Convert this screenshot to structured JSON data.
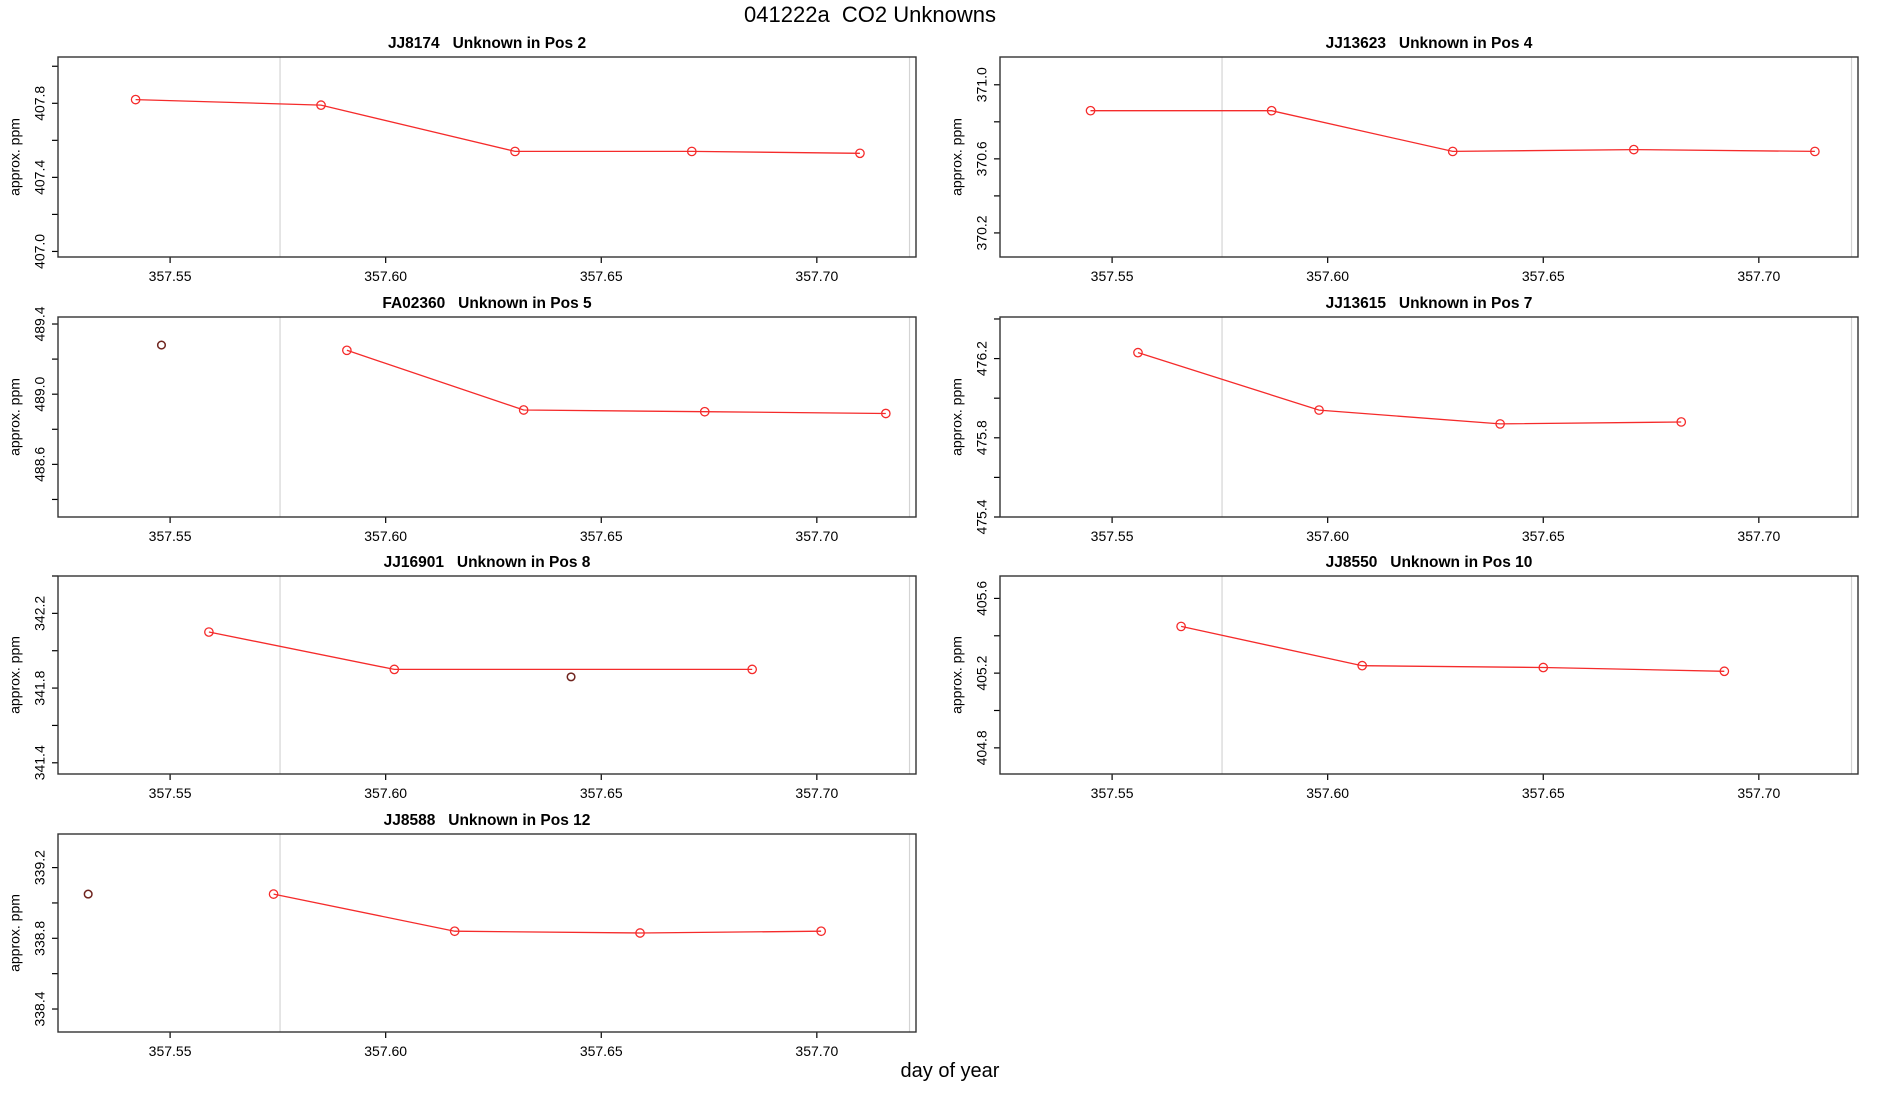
{
  "figure": {
    "title": "041222a  CO2 Unknowns",
    "x_axis_title": "day of year",
    "y_axis_title": "approx. ppm",
    "colors": {
      "series_line": "#f52b2b",
      "series_marker": "#f52b2b",
      "outlier_marker": "#6f241e",
      "guide_line": "#d4d4d4",
      "frame": "#333333",
      "text": "#000000",
      "background": "#ffffff"
    }
  },
  "chart_data": [
    {
      "type": "line",
      "title": "JJ8174   Unknown in Pos 2",
      "sample_id": "JJ8174",
      "position_label": "Unknown in Pos 2",
      "xlabel": "day of year",
      "ylabel": "approx. ppm",
      "x": [
        357.542,
        357.585,
        357.63,
        357.671,
        357.71
      ],
      "y": [
        407.82,
        407.79,
        407.54,
        407.54,
        407.53
      ],
      "outlier_points": [],
      "xlim": [
        357.524,
        357.723
      ],
      "ylim": [
        406.97,
        408.05
      ],
      "x_ticks": [
        357.55,
        357.6,
        357.65,
        357.7
      ],
      "y_ticks": [
        407.0,
        407.2,
        407.4,
        407.6,
        407.8,
        408.0
      ],
      "y_tick_labels": [
        407.0,
        407.4,
        407.8
      ],
      "guide_vlines": [
        357.5755,
        357.7215
      ],
      "grid": false,
      "legend": false
    },
    {
      "type": "line",
      "title": "JJ13623   Unknown in Pos 4",
      "sample_id": "JJ13623",
      "position_label": "Unknown in Pos 4",
      "xlabel": "day of year",
      "ylabel": "approx. ppm",
      "x": [
        357.545,
        357.587,
        357.629,
        357.671,
        357.713
      ],
      "y": [
        370.86,
        370.86,
        370.64,
        370.65,
        370.64
      ],
      "outlier_points": [],
      "xlim": [
        357.524,
        357.723
      ],
      "ylim": [
        370.07,
        371.15
      ],
      "x_ticks": [
        357.55,
        357.6,
        357.65,
        357.7
      ],
      "y_ticks": [
        370.2,
        370.4,
        370.6,
        370.8,
        371.0
      ],
      "y_tick_labels": [
        370.2,
        370.6,
        371.0
      ],
      "guide_vlines": [
        357.5755,
        357.7215
      ],
      "grid": false,
      "legend": false
    },
    {
      "type": "line",
      "title": "FA02360   Unknown in Pos 5",
      "sample_id": "FA02360",
      "position_label": "Unknown in Pos 5",
      "xlabel": "day of year",
      "ylabel": "approx. ppm",
      "x": [
        357.591,
        357.632,
        357.674,
        357.716
      ],
      "y": [
        489.25,
        488.91,
        488.9,
        488.89
      ],
      "outlier_points": [
        {
          "x": 357.548,
          "y": 489.28
        }
      ],
      "xlim": [
        357.524,
        357.723
      ],
      "ylim": [
        488.3,
        489.44
      ],
      "x_ticks": [
        357.55,
        357.6,
        357.65,
        357.7
      ],
      "y_ticks": [
        488.4,
        488.6,
        488.8,
        489.0,
        489.2,
        489.4
      ],
      "y_tick_labels": [
        488.6,
        489.0,
        489.4
      ],
      "guide_vlines": [
        357.5755,
        357.7215
      ],
      "grid": false,
      "legend": false
    },
    {
      "type": "line",
      "title": "JJ13615   Unknown in Pos 7",
      "sample_id": "JJ13615",
      "position_label": "Unknown in Pos 7",
      "xlabel": "day of year",
      "ylabel": "approx. ppm",
      "x": [
        357.556,
        357.598,
        357.64,
        357.682
      ],
      "y": [
        476.23,
        475.94,
        475.87,
        475.88
      ],
      "outlier_points": [],
      "xlim": [
        357.524,
        357.723
      ],
      "ylim": [
        475.4,
        476.41
      ],
      "x_ticks": [
        357.55,
        357.6,
        357.65,
        357.7
      ],
      "y_ticks": [
        475.4,
        475.6,
        475.8,
        476.0,
        476.2,
        476.4
      ],
      "y_tick_labels": [
        475.4,
        475.8,
        476.2
      ],
      "guide_vlines": [
        357.5755,
        357.7215
      ],
      "grid": false,
      "legend": false
    },
    {
      "type": "line",
      "title": "JJ16901   Unknown in Pos 8",
      "sample_id": "JJ16901",
      "position_label": "Unknown in Pos 8",
      "xlabel": "day of year",
      "ylabel": "approx. ppm",
      "x": [
        357.559,
        357.602,
        357.685
      ],
      "y": [
        342.1,
        341.9,
        341.9
      ],
      "outlier_points": [
        {
          "x": 357.643,
          "y": 341.86
        }
      ],
      "xlim": [
        357.524,
        357.723
      ],
      "ylim": [
        341.34,
        342.4
      ],
      "x_ticks": [
        357.55,
        357.6,
        357.65,
        357.7
      ],
      "y_ticks": [
        341.4,
        341.6,
        341.8,
        342.0,
        342.2,
        342.4
      ],
      "y_tick_labels": [
        341.4,
        341.8,
        342.2
      ],
      "guide_vlines": [
        357.5755,
        357.7215
      ],
      "grid": false,
      "legend": false
    },
    {
      "type": "line",
      "title": "JJ8550   Unknown in Pos 10",
      "sample_id": "JJ8550",
      "position_label": "Unknown in Pos 10",
      "xlabel": "day of year",
      "ylabel": "approx. ppm",
      "x": [
        357.566,
        357.608,
        357.65,
        357.692
      ],
      "y": [
        405.45,
        405.24,
        405.23,
        405.21
      ],
      "outlier_points": [],
      "xlim": [
        357.524,
        357.723
      ],
      "ylim": [
        404.66,
        405.72
      ],
      "x_ticks": [
        357.55,
        357.6,
        357.65,
        357.7
      ],
      "y_ticks": [
        404.8,
        405.0,
        405.2,
        405.4,
        405.6
      ],
      "y_tick_labels": [
        404.8,
        405.2,
        405.6
      ],
      "guide_vlines": [
        357.5755,
        357.7215
      ],
      "grid": false,
      "legend": false
    },
    {
      "type": "line",
      "title": "JJ8588   Unknown in Pos 12",
      "sample_id": "JJ8588",
      "position_label": "Unknown in Pos 12",
      "xlabel": "day of year",
      "ylabel": "approx. ppm",
      "x": [
        357.574,
        357.616,
        357.659,
        357.701
      ],
      "y": [
        339.05,
        338.84,
        338.83,
        338.84
      ],
      "outlier_points": [
        {
          "x": 357.531,
          "y": 339.05
        }
      ],
      "xlim": [
        357.524,
        357.723
      ],
      "ylim": [
        338.27,
        339.39
      ],
      "x_ticks": [
        357.55,
        357.6,
        357.65,
        357.7
      ],
      "y_ticks": [
        338.4,
        338.6,
        338.8,
        339.0,
        339.2
      ],
      "y_tick_labels": [
        338.4,
        338.8,
        339.2
      ],
      "guide_vlines": [
        357.5755,
        357.7215
      ],
      "grid": false,
      "legend": false
    }
  ]
}
